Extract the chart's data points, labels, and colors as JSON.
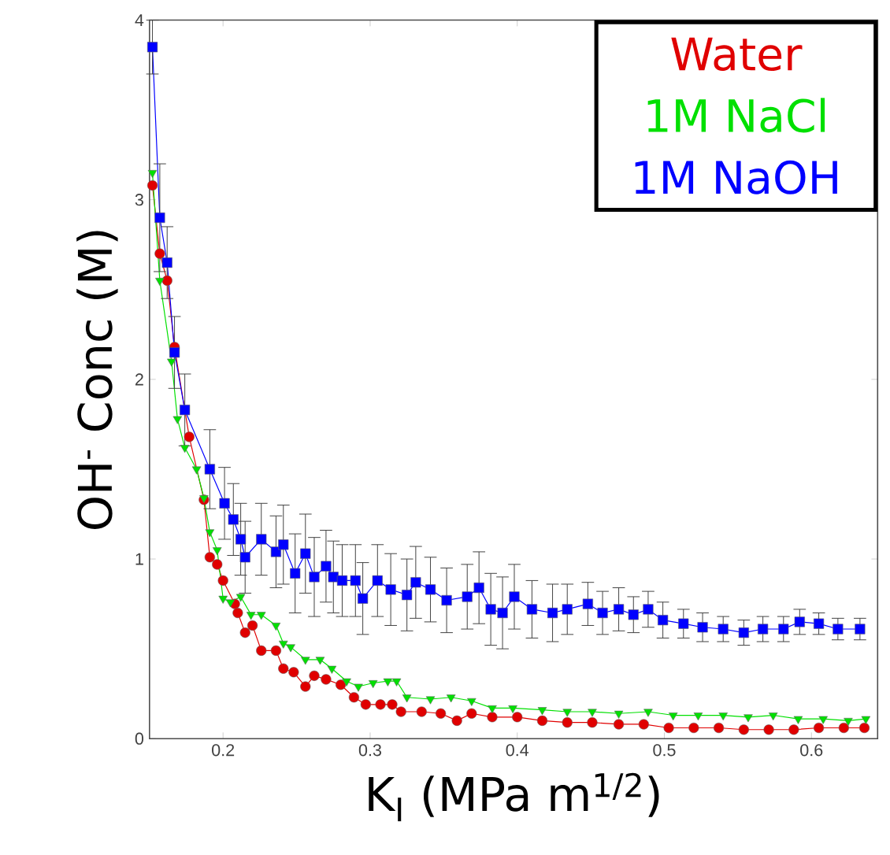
{
  "chart_data": {
    "type": "line",
    "xlabel": "K$_{I}$ (MPa m$^{1/2}$)",
    "ylabel": "OH$^{-}$ Conc (M)",
    "xlim": [
      0.15,
      0.645
    ],
    "ylim": [
      0,
      4
    ],
    "xticks": [
      0.2,
      0.3,
      0.4,
      0.5,
      0.6
    ],
    "yticks": [
      0,
      1,
      2,
      3,
      4
    ],
    "legend": "top right",
    "line_style": "solid",
    "series": [
      {
        "name": "Water",
        "color": "#e00000",
        "marker": "circle",
        "x": [
          0.152,
          0.157,
          0.162,
          0.167,
          0.177,
          0.187,
          0.191,
          0.196,
          0.2,
          0.208,
          0.21,
          0.215,
          0.22,
          0.226,
          0.236,
          0.241,
          0.248,
          0.256,
          0.262,
          0.27,
          0.28,
          0.289,
          0.297,
          0.307,
          0.315,
          0.321,
          0.335,
          0.348,
          0.359,
          0.369,
          0.383,
          0.4,
          0.417,
          0.434,
          0.451,
          0.469,
          0.486,
          0.503,
          0.52,
          0.537,
          0.554,
          0.571,
          0.588,
          0.605,
          0.622,
          0.636
        ],
        "values": [
          3.08,
          2.7,
          2.55,
          2.18,
          1.68,
          1.33,
          1.01,
          0.97,
          0.88,
          0.75,
          0.7,
          0.59,
          0.63,
          0.49,
          0.49,
          0.39,
          0.37,
          0.29,
          0.35,
          0.33,
          0.3,
          0.23,
          0.19,
          0.19,
          0.19,
          0.15,
          0.15,
          0.14,
          0.1,
          0.14,
          0.12,
          0.12,
          0.1,
          0.09,
          0.09,
          0.08,
          0.08,
          0.06,
          0.06,
          0.06,
          0.05,
          0.05,
          0.05,
          0.06,
          0.06,
          0.06
        ]
      },
      {
        "name": "1M NaCl",
        "color": "#00e000",
        "marker": "triangle",
        "x": [
          0.152,
          0.157,
          0.165,
          0.169,
          0.174,
          0.182,
          0.187,
          0.191,
          0.196,
          0.2,
          0.205,
          0.212,
          0.219,
          0.226,
          0.236,
          0.241,
          0.246,
          0.256,
          0.266,
          0.274,
          0.284,
          0.292,
          0.302,
          0.312,
          0.318,
          0.325,
          0.341,
          0.355,
          0.369,
          0.383,
          0.397,
          0.417,
          0.434,
          0.451,
          0.469,
          0.489,
          0.506,
          0.523,
          0.54,
          0.557,
          0.574,
          0.591,
          0.608,
          0.625,
          0.637
        ],
        "values": [
          3.15,
          2.55,
          2.1,
          1.78,
          1.62,
          1.5,
          1.34,
          1.15,
          1.05,
          0.78,
          0.76,
          0.79,
          0.69,
          0.69,
          0.63,
          0.53,
          0.51,
          0.44,
          0.44,
          0.39,
          0.32,
          0.29,
          0.31,
          0.32,
          0.32,
          0.23,
          0.22,
          0.23,
          0.21,
          0.17,
          0.17,
          0.16,
          0.15,
          0.15,
          0.14,
          0.15,
          0.13,
          0.13,
          0.13,
          0.12,
          0.13,
          0.11,
          0.11,
          0.1,
          0.11
        ]
      },
      {
        "name": "1M NaOH",
        "color": "#0000ff",
        "marker": "square",
        "x": [
          0.152,
          0.157,
          0.162,
          0.167,
          0.174,
          0.191,
          0.201,
          0.207,
          0.212,
          0.215,
          0.226,
          0.236,
          0.241,
          0.249,
          0.256,
          0.262,
          0.27,
          0.275,
          0.281,
          0.29,
          0.295,
          0.305,
          0.314,
          0.325,
          0.331,
          0.341,
          0.352,
          0.366,
          0.374,
          0.382,
          0.39,
          0.398,
          0.41,
          0.424,
          0.434,
          0.448,
          0.458,
          0.469,
          0.479,
          0.489,
          0.499,
          0.513,
          0.526,
          0.54,
          0.554,
          0.567,
          0.581,
          0.592,
          0.605,
          0.618,
          0.633
        ],
        "values": [
          3.85,
          2.9,
          2.65,
          2.15,
          1.83,
          1.5,
          1.31,
          1.22,
          1.11,
          1.01,
          1.11,
          1.04,
          1.08,
          0.92,
          1.03,
          0.9,
          0.96,
          0.9,
          0.88,
          0.88,
          0.78,
          0.88,
          0.83,
          0.8,
          0.87,
          0.83,
          0.77,
          0.79,
          0.84,
          0.72,
          0.7,
          0.79,
          0.72,
          0.7,
          0.72,
          0.75,
          0.7,
          0.72,
          0.69,
          0.72,
          0.66,
          0.64,
          0.62,
          0.61,
          0.59,
          0.61,
          0.61,
          0.65,
          0.64,
          0.61,
          0.61
        ],
        "errors": [
          0.15,
          0.3,
          0.2,
          0.2,
          0.2,
          0.22,
          0.2,
          0.2,
          0.2,
          0.2,
          0.2,
          0.2,
          0.22,
          0.22,
          0.22,
          0.22,
          0.2,
          0.2,
          0.2,
          0.2,
          0.2,
          0.2,
          0.2,
          0.2,
          0.2,
          0.18,
          0.18,
          0.18,
          0.2,
          0.2,
          0.2,
          0.18,
          0.16,
          0.16,
          0.14,
          0.12,
          0.12,
          0.12,
          0.1,
          0.1,
          0.1,
          0.08,
          0.08,
          0.07,
          0.07,
          0.07,
          0.07,
          0.07,
          0.06,
          0.06,
          0.06
        ]
      }
    ]
  }
}
